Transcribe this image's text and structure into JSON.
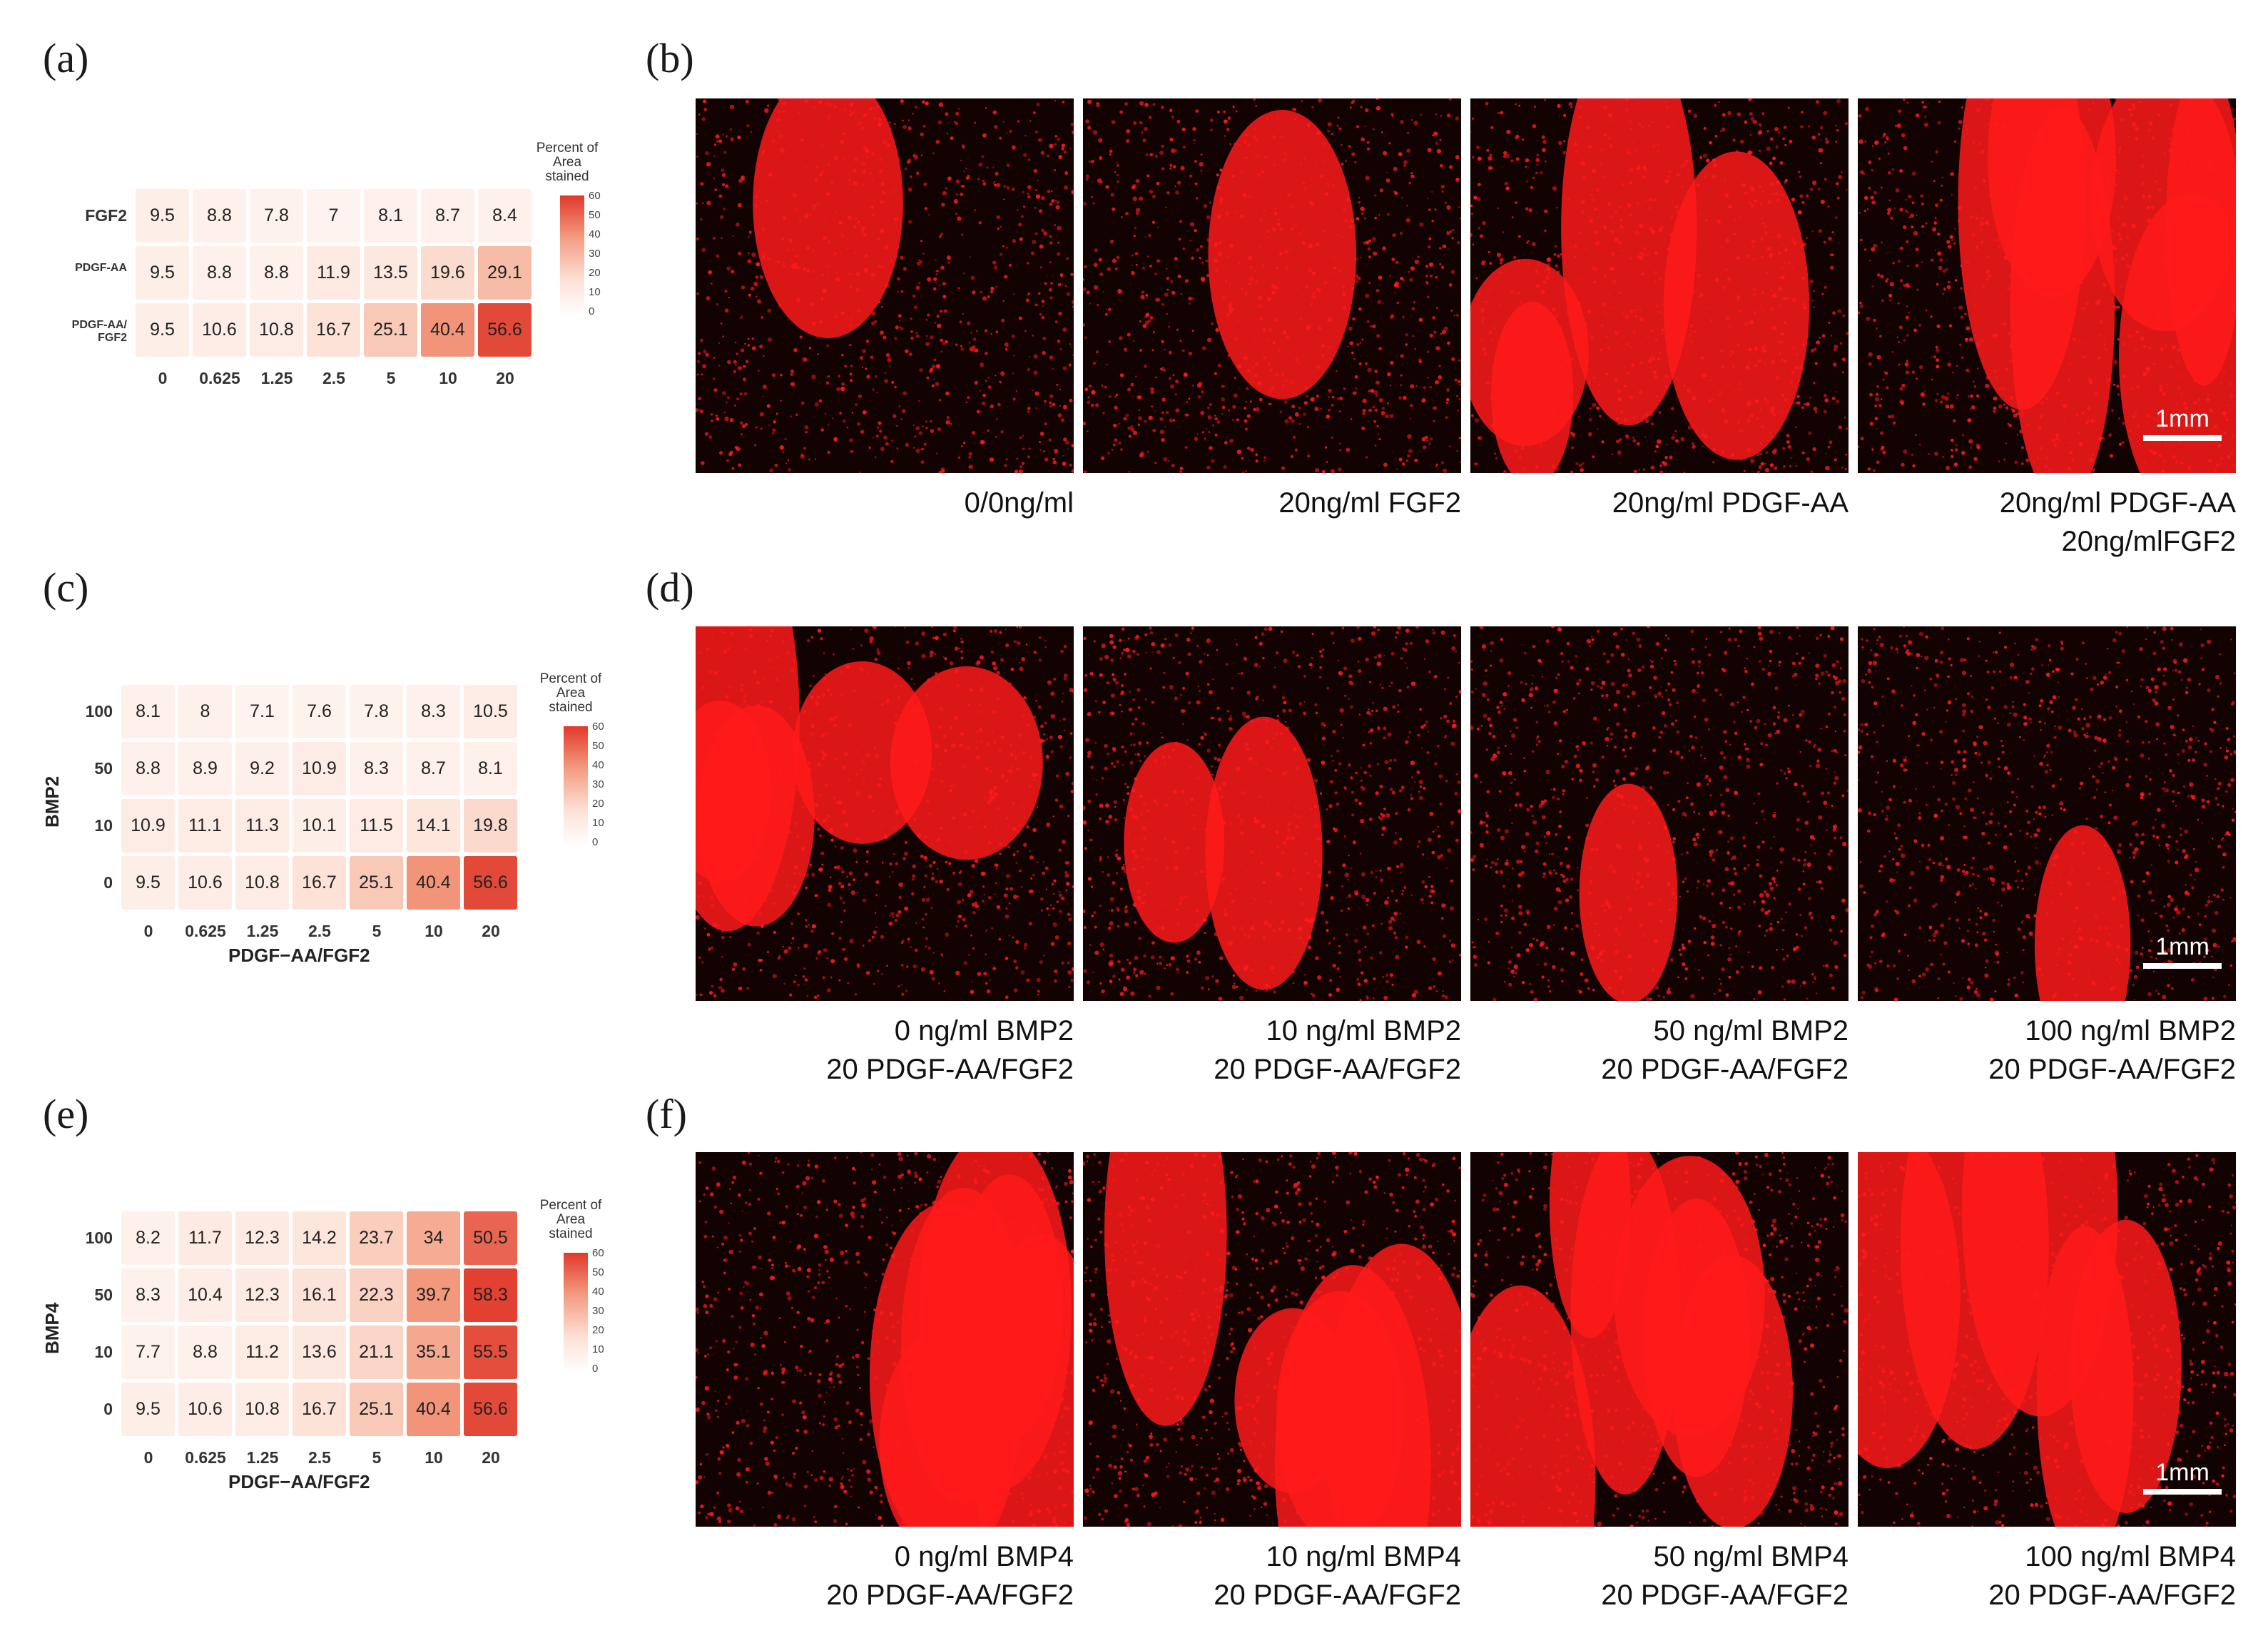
{
  "panel_labels": [
    "(a)",
    "(b)",
    "(c)",
    "(d)",
    "(e)",
    "(f)"
  ],
  "colors": {
    "low": "#ffffff",
    "high": "#e0392b",
    "stain": "#ff1a1a",
    "background": "#120202"
  },
  "chart_data": [
    {
      "type": "heatmap",
      "id": "a",
      "x_categories": [
        "0",
        "0.625",
        "1.25",
        "2.5",
        "5",
        "10",
        "20"
      ],
      "y_categories": [
        "FGF2",
        "PDGF-AA",
        "PDGF-AA/ FGF2"
      ],
      "values": [
        [
          9.5,
          8.8,
          7.8,
          7,
          8.1,
          8.7,
          8.4
        ],
        [
          9.5,
          8.8,
          8.8,
          11.9,
          13.5,
          19.6,
          29.1
        ],
        [
          9.5,
          10.6,
          10.8,
          16.7,
          25.1,
          40.4,
          56.6
        ]
      ],
      "value_labels": [
        [
          "9.5",
          "8.8",
          "7.8",
          "7",
          "8.1",
          "8.7",
          "8.4"
        ],
        [
          "9.5",
          "8.8",
          "8.8",
          "11.9",
          "13.5",
          "19.6",
          "29.1"
        ],
        [
          "9.5",
          "10.6",
          "10.8",
          "16.7",
          "25.1",
          "40.4",
          "56.6"
        ]
      ],
      "xlabel": "",
      "ylabel": "",
      "legend_title": "Percent of Area stained",
      "legend_ticks": [
        "60",
        "50",
        "40",
        "30",
        "20",
        "10",
        "0"
      ],
      "color_range": [
        0,
        60
      ]
    },
    {
      "type": "heatmap",
      "id": "c",
      "x_categories": [
        "0",
        "0.625",
        "1.25",
        "2.5",
        "5",
        "10",
        "20"
      ],
      "y_categories": [
        "100",
        "50",
        "10",
        "0"
      ],
      "values": [
        [
          8.1,
          8,
          7.1,
          7.6,
          7.8,
          8.3,
          10.5
        ],
        [
          8.8,
          8.9,
          9.2,
          10.9,
          8.3,
          8.7,
          8.1
        ],
        [
          10.9,
          11.1,
          11.3,
          10.1,
          11.5,
          14.1,
          19.8
        ],
        [
          9.5,
          10.6,
          10.8,
          16.7,
          25.1,
          40.4,
          56.6
        ]
      ],
      "value_labels": [
        [
          "8.1",
          "8",
          "7.1",
          "7.6",
          "7.8",
          "8.3",
          "10.5"
        ],
        [
          "8.8",
          "8.9",
          "9.2",
          "10.9",
          "8.3",
          "8.7",
          "8.1"
        ],
        [
          "10.9",
          "11.1",
          "11.3",
          "10.1",
          "11.5",
          "14.1",
          "19.8"
        ],
        [
          "9.5",
          "10.6",
          "10.8",
          "16.7",
          "25.1",
          "40.4",
          "56.6"
        ]
      ],
      "xlabel": "PDGF−AA/FGF2",
      "ylabel": "BMP2",
      "legend_title": "Percent of Area stained",
      "legend_ticks": [
        "60",
        "50",
        "40",
        "30",
        "20",
        "10",
        "0"
      ],
      "color_range": [
        0,
        60
      ]
    },
    {
      "type": "heatmap",
      "id": "e",
      "x_categories": [
        "0",
        "0.625",
        "1.25",
        "2.5",
        "5",
        "10",
        "20"
      ],
      "y_categories": [
        "100",
        "50",
        "10",
        "0"
      ],
      "values": [
        [
          8.2,
          11.7,
          12.3,
          14.2,
          23.7,
          34,
          50.5
        ],
        [
          8.3,
          10.4,
          12.3,
          16.1,
          22.3,
          39.7,
          58.3
        ],
        [
          7.7,
          8.8,
          11.2,
          13.6,
          21.1,
          35.1,
          55.5
        ],
        [
          9.5,
          10.6,
          10.8,
          16.7,
          25.1,
          40.4,
          56.6
        ]
      ],
      "value_labels": [
        [
          "8.2",
          "11.7",
          "12.3",
          "14.2",
          "23.7",
          "34",
          "50.5"
        ],
        [
          "8.3",
          "10.4",
          "12.3",
          "16.1",
          "22.3",
          "39.7",
          "58.3"
        ],
        [
          "7.7",
          "8.8",
          "11.2",
          "13.6",
          "21.1",
          "35.1",
          "55.5"
        ],
        [
          "9.5",
          "10.6",
          "10.8",
          "16.7",
          "25.1",
          "40.4",
          "56.6"
        ]
      ],
      "xlabel": "PDGF−AA/FGF2",
      "ylabel": "BMP4",
      "legend_title": "Percent of Area stained",
      "legend_ticks": [
        "60",
        "50",
        "40",
        "30",
        "20",
        "10",
        "0"
      ],
      "color_range": [
        0,
        60
      ]
    }
  ],
  "micrographs": {
    "b": [
      {
        "caption": [
          "0/0ng/ml"
        ],
        "stain_level": 0.1,
        "scalebar": ""
      },
      {
        "caption": [
          "20ng/ml FGF2"
        ],
        "stain_level": 0.12,
        "scalebar": ""
      },
      {
        "caption": [
          "20ng/ml PDGF-AA"
        ],
        "stain_level": 0.45,
        "scalebar": ""
      },
      {
        "caption": [
          "20ng/ml PDGF-AA",
          "20ng/mlFGF2"
        ],
        "stain_level": 0.65,
        "scalebar": "1mm"
      }
    ],
    "d": [
      {
        "caption": [
          "0 ng/ml BMP2",
          "20 PDGF-AA/FGF2"
        ],
        "stain_level": 0.6,
        "scalebar": ""
      },
      {
        "caption": [
          "10 ng/ml BMP2",
          "20 PDGF-AA/FGF2"
        ],
        "stain_level": 0.22,
        "scalebar": ""
      },
      {
        "caption": [
          "50 ng/ml BMP2",
          "20 PDGF-AA/FGF2"
        ],
        "stain_level": 0.12,
        "scalebar": ""
      },
      {
        "caption": [
          "100 ng/ml BMP2",
          "20 PDGF-AA/FGF2"
        ],
        "stain_level": 0.1,
        "scalebar": "1mm"
      }
    ],
    "f": [
      {
        "caption": [
          "0 ng/ml BMP4",
          "20 PDGF-AA/FGF2"
        ],
        "stain_level": 0.62,
        "scalebar": ""
      },
      {
        "caption": [
          "10 ng/ml BMP4",
          "20 PDGF-AA/FGF2"
        ],
        "stain_level": 0.55,
        "scalebar": ""
      },
      {
        "caption": [
          "50 ng/ml BMP4",
          "20 PDGF-AA/FGF2"
        ],
        "stain_level": 0.72,
        "scalebar": ""
      },
      {
        "caption": [
          "100 ng/ml BMP4",
          "20 PDGF-AA/FGF2"
        ],
        "stain_level": 0.55,
        "scalebar": "1mm"
      }
    ]
  }
}
